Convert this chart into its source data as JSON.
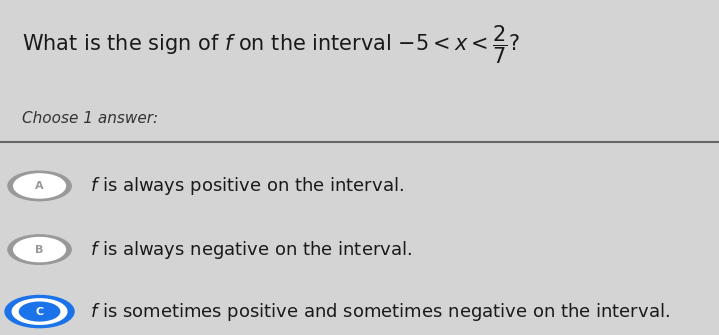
{
  "bg_color": "#d4d4d4",
  "separator_color": "#666666",
  "answer_A_circle_color": "#999999",
  "answer_B_circle_color": "#999999",
  "answer_C_circle_color": "#1a73e8",
  "answer_A_text": "f is always positive on the interval.",
  "answer_B_text": "f is always negative on the interval.",
  "answer_C_text": "f is sometimes positive and sometimes negative on the interval.",
  "text_color": "#1a1a1a",
  "choose_color": "#333333",
  "font_size_title": 15,
  "font_size_body": 13,
  "font_size_choose": 11
}
